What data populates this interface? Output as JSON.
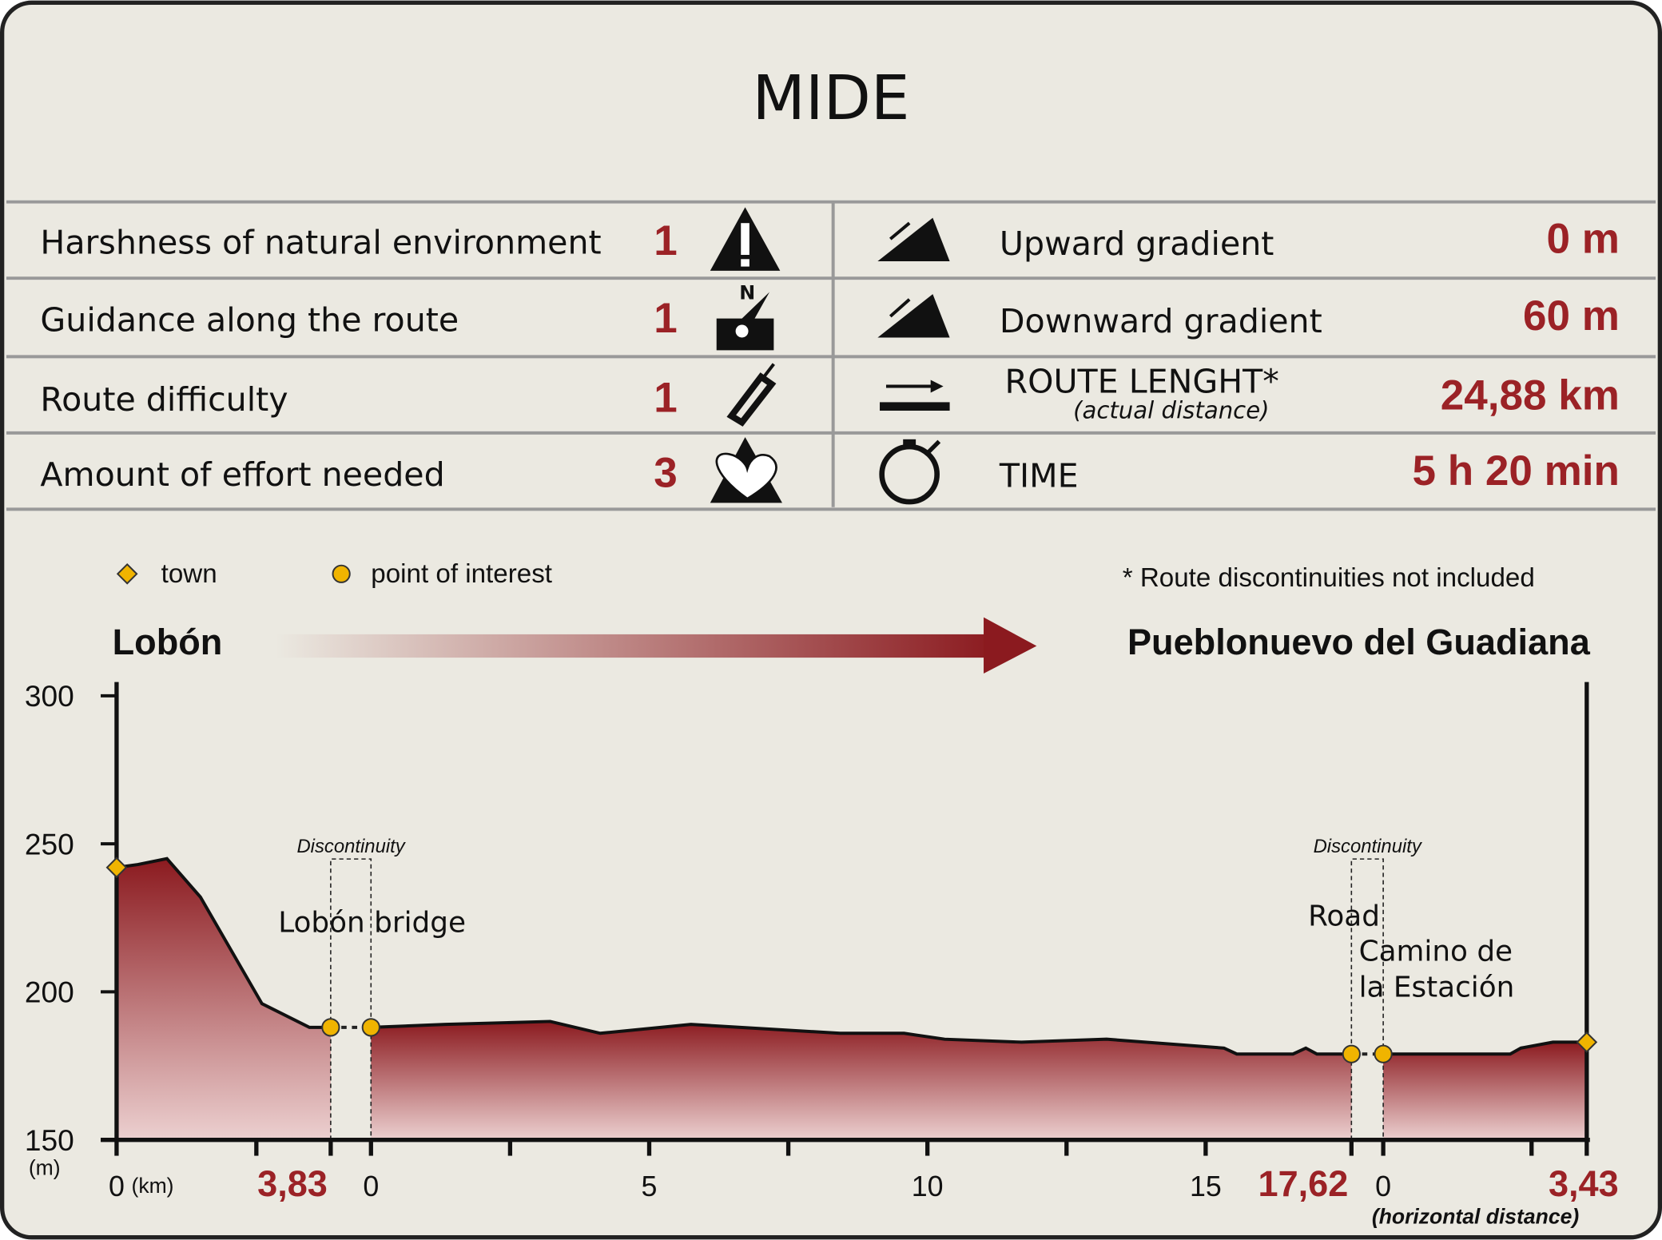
{
  "mide": {
    "title": "MIDE",
    "left": [
      {
        "label": "Harshness of natural environment",
        "value": 1
      },
      {
        "label": "Guidance along the route",
        "value": 1
      },
      {
        "label": "Route difficulty",
        "value": 1
      },
      {
        "label": "Amount of effort needed",
        "value": 3
      }
    ],
    "right": [
      {
        "label": "Upward gradient",
        "value": "0 m"
      },
      {
        "label": "Downward gradient",
        "value": "60 m"
      },
      {
        "label": "ROUTE LENGHT*",
        "sublabel": "(actual distance)",
        "value": "24,88 km"
      },
      {
        "label": "TIME",
        "value": "5 h 20 min"
      }
    ]
  },
  "chart_data": {
    "type": "area",
    "legend": [
      {
        "name": "town",
        "shape": "diamond"
      },
      {
        "name": "point of interest",
        "shape": "circle"
      }
    ],
    "marker_color": "#f0b400",
    "note": "* Route discontinuities not included",
    "start": "Lobón",
    "end": "Pueblonuevo del Guadiana",
    "ylabel": "(m)",
    "xunit": "(km)",
    "xlabel": "(horizontal distance)",
    "ylim": [
      150,
      300
    ],
    "yticks": [
      150,
      200,
      250,
      300
    ],
    "color_top": "#8b1a1f",
    "color_bottom": "#ecd0d0",
    "segments": [
      {
        "xlim": [
          0,
          3.83
        ],
        "xticks": [
          0,
          {
            "value": 3.83,
            "label": "3,83"
          }
        ],
        "xminor": [
          2.5
        ],
        "x": [
          0,
          0.38,
          0.9,
          1.5,
          2.6,
          3.45,
          3.83
        ],
        "values": [
          242,
          243,
          245,
          232,
          196,
          188,
          188
        ],
        "markers": [
          {
            "x": 0,
            "y": 242,
            "shape": "diamond"
          },
          {
            "x": 3.83,
            "y": 188,
            "shape": "circle"
          }
        ]
      },
      {
        "xlim": [
          0,
          17.62
        ],
        "xticks": [
          0,
          5,
          10,
          15,
          {
            "value": 17.62,
            "label": "17,62"
          }
        ],
        "xminor": [
          2.5,
          7.5,
          12.5
        ],
        "x": [
          0,
          1.34,
          3.22,
          4.12,
          5.75,
          8.43,
          9.58,
          10.31,
          11.69,
          13.22,
          15.33,
          15.56,
          16.57,
          16.8,
          17.0,
          17.62
        ],
        "values": [
          188,
          189,
          190,
          186,
          189,
          186,
          186,
          184,
          183,
          184,
          181,
          179,
          179,
          181,
          179,
          179
        ],
        "markers": [
          {
            "x": 0,
            "y": 188,
            "shape": "circle"
          },
          {
            "x": 17.62,
            "y": 179,
            "shape": "circle"
          }
        ]
      },
      {
        "xlim": [
          0,
          3.43
        ],
        "xticks": [
          0,
          {
            "value": 3.43,
            "label": "3,43"
          }
        ],
        "xminor": [
          2.5
        ],
        "x": [
          0,
          2.14,
          2.32,
          2.86,
          3.43
        ],
        "values": [
          179,
          179,
          181,
          183,
          183
        ],
        "markers": [
          {
            "x": 0,
            "y": 179,
            "shape": "circle"
          },
          {
            "x": 3.43,
            "y": 183,
            "shape": "diamond"
          }
        ]
      }
    ],
    "discontinuity_label": "Discontinuity",
    "annotations": [
      {
        "lines": [
          "Lobón bridge"
        ]
      },
      {
        "lines": [
          "Road"
        ]
      },
      {
        "lines": [
          "Camino de",
          "la Estación"
        ]
      }
    ]
  }
}
